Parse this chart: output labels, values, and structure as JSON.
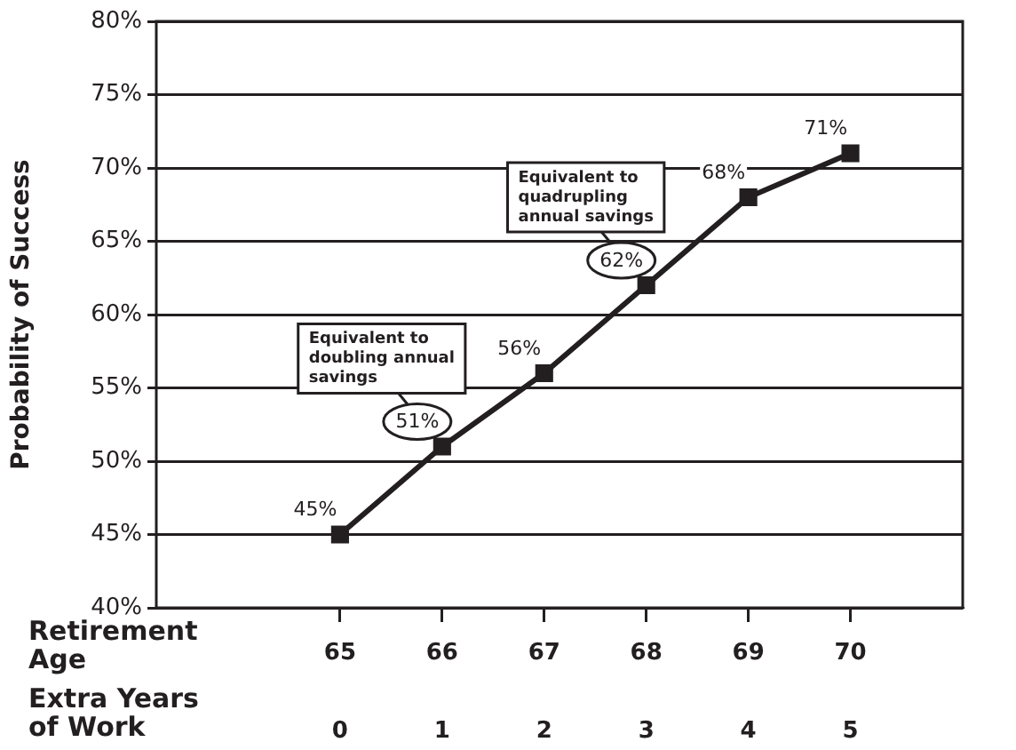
{
  "chart_data": {
    "type": "line",
    "ylabel": "Probability of Success",
    "xlabel": "Retirement Age",
    "x2label": "Extra Years of Work",
    "x": [
      65,
      66,
      67,
      68,
      69,
      70
    ],
    "series": [
      {
        "color": "#231f20",
        "values": [
          45,
          51,
          56,
          62,
          68,
          71
        ],
        "value_labels": [
          "45%",
          "51%",
          "56%",
          "62%",
          "68%",
          "71%"
        ]
      }
    ],
    "xlim": [
      63.2,
      71.1
    ],
    "xticks": [
      65,
      66,
      67,
      68,
      69,
      70
    ],
    "x2lim": [
      -1.8,
      6.1
    ],
    "x2ticks": [
      0,
      1,
      2,
      3,
      4,
      5
    ],
    "ylim": [
      40,
      80
    ],
    "yticks": [
      {
        "value": 40,
        "label": "40%"
      },
      {
        "value": 45,
        "label": "45%"
      },
      {
        "value": 50,
        "label": "50%"
      },
      {
        "value": 55,
        "label": "55%"
      },
      {
        "value": 60,
        "label": "60%"
      },
      {
        "value": 65,
        "label": "65%"
      },
      {
        "value": 70,
        "label": "70%"
      },
      {
        "value": 75,
        "label": "75%"
      },
      {
        "value": 80,
        "label": "80%"
      }
    ],
    "grid": "y",
    "legend": false,
    "marker": "square",
    "line_style": "solid",
    "annotations": [
      {
        "text": "Equivalent to doubling annual savings",
        "x": 66,
        "y": 51
      },
      {
        "text": "Equivalent to quadrupling annual savings",
        "x": 68,
        "y": 62
      }
    ]
  }
}
